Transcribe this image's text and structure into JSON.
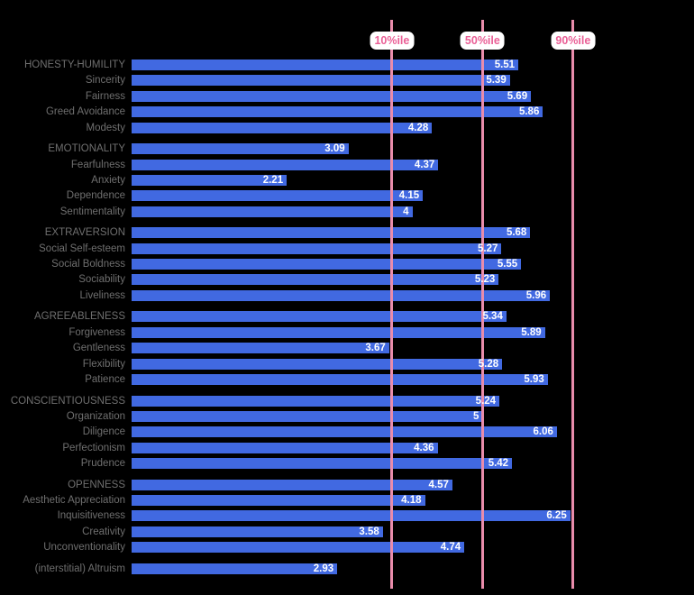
{
  "colors": {
    "background": "#000000",
    "bar": "#4169E1",
    "row_label": "#6f6f6f",
    "value_label": "#ffffff",
    "percentile_line": "#e98cab",
    "percentile_chip_bg": "#ffffff",
    "percentile_chip_text": "#ea5f96"
  },
  "chart_data": {
    "type": "bar",
    "orientation": "horizontal",
    "value_axis": {
      "min": 0,
      "max": 8,
      "gridlines": false
    },
    "legend": "none",
    "percentile_lines": [
      {
        "label": "10%ile",
        "value": 3.71
      },
      {
        "label": "50%ile",
        "value": 5.0
      },
      {
        "label": "90%ile",
        "value": 6.29
      }
    ],
    "groups": [
      {
        "name": "honesty-humility",
        "rows": [
          {
            "label": "HONESTY-HUMILITY",
            "value": 5.51,
            "value_label": "5.51"
          },
          {
            "label": "Sincerity",
            "value": 5.39,
            "value_label": "5.39"
          },
          {
            "label": "Fairness",
            "value": 5.69,
            "value_label": "5.69"
          },
          {
            "label": "Greed Avoidance",
            "value": 5.86,
            "value_label": "5.86"
          },
          {
            "label": "Modesty",
            "value": 4.28,
            "value_label": "4.28"
          }
        ]
      },
      {
        "name": "emotionality",
        "rows": [
          {
            "label": "EMOTIONALITY",
            "value": 3.09,
            "value_label": "3.09"
          },
          {
            "label": "Fearfulness",
            "value": 4.37,
            "value_label": "4.37"
          },
          {
            "label": "Anxiety",
            "value": 2.21,
            "value_label": "2.21"
          },
          {
            "label": "Dependence",
            "value": 4.15,
            "value_label": "4.15"
          },
          {
            "label": "Sentimentality",
            "value": 4,
            "value_label": "4"
          }
        ]
      },
      {
        "name": "extraversion",
        "rows": [
          {
            "label": "EXTRAVERSION",
            "value": 5.68,
            "value_label": "5.68"
          },
          {
            "label": "Social Self-esteem",
            "value": 5.27,
            "value_label": "5.27"
          },
          {
            "label": "Social Boldness",
            "value": 5.55,
            "value_label": "5.55"
          },
          {
            "label": "Sociability",
            "value": 5.23,
            "value_label": "5.23"
          },
          {
            "label": "Liveliness",
            "value": 5.96,
            "value_label": "5.96"
          }
        ]
      },
      {
        "name": "agreeableness",
        "rows": [
          {
            "label": "AGREEABLENESS",
            "value": 5.34,
            "value_label": "5.34"
          },
          {
            "label": "Forgiveness",
            "value": 5.89,
            "value_label": "5.89"
          },
          {
            "label": "Gentleness",
            "value": 3.67,
            "value_label": "3.67"
          },
          {
            "label": "Flexibility",
            "value": 5.28,
            "value_label": "5.28"
          },
          {
            "label": "Patience",
            "value": 5.93,
            "value_label": "5.93"
          }
        ]
      },
      {
        "name": "conscientiousness",
        "rows": [
          {
            "label": "CONSCIENTIOUSNESS",
            "value": 5.24,
            "value_label": "5.24"
          },
          {
            "label": "Organization",
            "value": 5,
            "value_label": "5"
          },
          {
            "label": "Diligence",
            "value": 6.06,
            "value_label": "6.06"
          },
          {
            "label": "Perfectionism",
            "value": 4.36,
            "value_label": "4.36"
          },
          {
            "label": "Prudence",
            "value": 5.42,
            "value_label": "5.42"
          }
        ]
      },
      {
        "name": "openness",
        "rows": [
          {
            "label": "OPENNESS",
            "value": 4.57,
            "value_label": "4.57"
          },
          {
            "label": "Aesthetic Appreciation",
            "value": 4.18,
            "value_label": "4.18"
          },
          {
            "label": "Inquisitiveness",
            "value": 6.25,
            "value_label": "6.25"
          },
          {
            "label": "Creativity",
            "value": 3.58,
            "value_label": "3.58"
          },
          {
            "label": "Unconventionality",
            "value": 4.74,
            "value_label": "4.74"
          }
        ]
      },
      {
        "name": "interstitial",
        "rows": [
          {
            "label": "(interstitial) Altruism",
            "value": 2.93,
            "value_label": "2.93"
          }
        ]
      }
    ]
  }
}
